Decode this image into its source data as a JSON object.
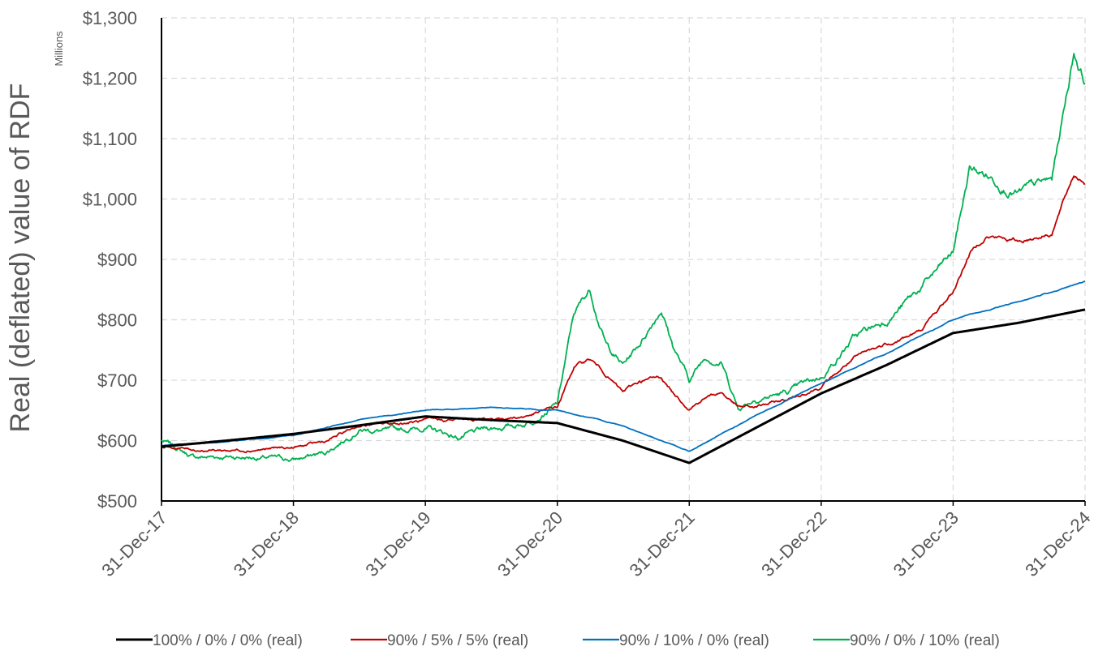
{
  "chart_data": {
    "type": "line",
    "title": "",
    "ylabel": "Real (deflated) value of RDF",
    "y_units": "Millions",
    "xlabel": "",
    "ylim": [
      500,
      1300
    ],
    "yticks": [
      500,
      600,
      700,
      800,
      900,
      1000,
      1100,
      1200,
      1300
    ],
    "ytick_labels": [
      "$500",
      "$600",
      "$700",
      "$800",
      "$900",
      "$1,000",
      "$1,100",
      "$1,200",
      "$1,300"
    ],
    "xlim": [
      "2017-12-31",
      "2024-12-31"
    ],
    "xtick_labels": [
      "31-Dec-17",
      "31-Dec-18",
      "31-Dec-19",
      "31-Dec-20",
      "31-Dec-21",
      "31-Dec-22",
      "31-Dec-23",
      "31-Dec-24"
    ],
    "grid": true,
    "legend_position": "bottom",
    "series": [
      {
        "name": "100% / 0% / 0% (real)",
        "color": "#000000",
        "points": [
          [
            "2017-12-31",
            590
          ],
          [
            "2018-06-30",
            600
          ],
          [
            "2018-12-31",
            611
          ],
          [
            "2019-06-30",
            625
          ],
          [
            "2019-12-31",
            640
          ],
          [
            "2020-06-30",
            634
          ],
          [
            "2020-12-31",
            629
          ],
          [
            "2021-06-30",
            600
          ],
          [
            "2021-12-31",
            563
          ],
          [
            "2022-06-30",
            620
          ],
          [
            "2022-12-31",
            678
          ],
          [
            "2023-06-30",
            725
          ],
          [
            "2023-12-31",
            778
          ],
          [
            "2024-06-30",
            795
          ],
          [
            "2024-12-31",
            817
          ]
        ]
      },
      {
        "name": "90% / 5% / 5% (real)",
        "color": "#c00000",
        "points": [
          [
            "2017-12-31",
            590
          ],
          [
            "2018-03-31",
            585
          ],
          [
            "2018-06-30",
            584
          ],
          [
            "2018-09-30",
            586
          ],
          [
            "2018-12-31",
            588
          ],
          [
            "2019-03-31",
            598
          ],
          [
            "2019-06-30",
            625
          ],
          [
            "2019-09-30",
            628
          ],
          [
            "2019-12-31",
            632
          ],
          [
            "2020-03-31",
            634
          ],
          [
            "2020-06-30",
            636
          ],
          [
            "2020-09-30",
            640
          ],
          [
            "2020-12-31",
            655
          ],
          [
            "2021-02-15",
            722
          ],
          [
            "2021-03-31",
            735
          ],
          [
            "2021-05-15",
            710
          ],
          [
            "2021-06-30",
            680
          ],
          [
            "2021-08-15",
            698
          ],
          [
            "2021-10-15",
            705
          ],
          [
            "2021-11-15",
            680
          ],
          [
            "2021-12-31",
            655
          ],
          [
            "2022-02-15",
            672
          ],
          [
            "2022-03-31",
            680
          ],
          [
            "2022-05-15",
            655
          ],
          [
            "2022-06-30",
            655
          ],
          [
            "2022-09-30",
            668
          ],
          [
            "2022-12-31",
            690
          ],
          [
            "2023-03-31",
            735
          ],
          [
            "2023-06-30",
            760
          ],
          [
            "2023-09-30",
            780
          ],
          [
            "2023-12-31",
            845
          ],
          [
            "2024-02-15",
            910
          ],
          [
            "2024-03-31",
            940
          ],
          [
            "2024-06-30",
            930
          ],
          [
            "2024-09-30",
            945
          ],
          [
            "2024-11-30",
            1040
          ],
          [
            "2024-12-31",
            1030
          ]
        ]
      },
      {
        "name": "90% / 10% / 0% (real)",
        "color": "#0070c0",
        "points": [
          [
            "2017-12-31",
            592
          ],
          [
            "2018-06-30",
            598
          ],
          [
            "2018-12-31",
            608
          ],
          [
            "2019-06-30",
            635
          ],
          [
            "2019-12-31",
            650
          ],
          [
            "2020-06-30",
            655
          ],
          [
            "2020-12-31",
            650
          ],
          [
            "2021-06-30",
            625
          ],
          [
            "2021-12-31",
            582
          ],
          [
            "2022-06-30",
            640
          ],
          [
            "2022-12-31",
            695
          ],
          [
            "2023-06-30",
            745
          ],
          [
            "2023-12-31",
            800
          ],
          [
            "2024-06-30",
            830
          ],
          [
            "2024-12-31",
            863
          ]
        ]
      },
      {
        "name": "90% / 0% / 10% (real)",
        "color": "#00b050",
        "points": [
          [
            "2017-12-31",
            600
          ],
          [
            "2018-03-31",
            572
          ],
          [
            "2018-06-30",
            574
          ],
          [
            "2018-09-30",
            572
          ],
          [
            "2018-12-31",
            568
          ],
          [
            "2019-03-31",
            580
          ],
          [
            "2019-06-30",
            620
          ],
          [
            "2019-09-30",
            615
          ],
          [
            "2019-12-31",
            622
          ],
          [
            "2020-03-31",
            605
          ],
          [
            "2020-06-30",
            620
          ],
          [
            "2020-09-30",
            628
          ],
          [
            "2020-12-31",
            660
          ],
          [
            "2021-02-15",
            810
          ],
          [
            "2021-03-31",
            850
          ],
          [
            "2021-05-15",
            760
          ],
          [
            "2021-06-30",
            725
          ],
          [
            "2021-08-15",
            760
          ],
          [
            "2021-10-15",
            820
          ],
          [
            "2021-11-15",
            760
          ],
          [
            "2021-12-31",
            700
          ],
          [
            "2022-02-15",
            740
          ],
          [
            "2022-03-31",
            730
          ],
          [
            "2022-05-15",
            655
          ],
          [
            "2022-06-30",
            670
          ],
          [
            "2022-09-30",
            680
          ],
          [
            "2022-12-31",
            705
          ],
          [
            "2023-03-31",
            770
          ],
          [
            "2023-06-30",
            800
          ],
          [
            "2023-09-30",
            850
          ],
          [
            "2023-12-31",
            910
          ],
          [
            "2024-02-15",
            1050
          ],
          [
            "2024-03-31",
            1040
          ],
          [
            "2024-06-30",
            1010
          ],
          [
            "2024-09-30",
            1030
          ],
          [
            "2024-11-30",
            1245
          ],
          [
            "2024-12-31",
            1195
          ]
        ]
      }
    ]
  }
}
